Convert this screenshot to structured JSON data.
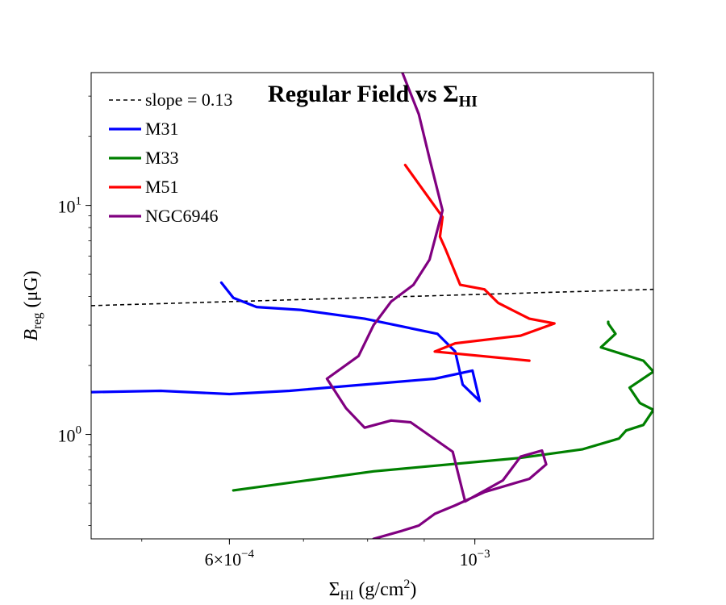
{
  "chart_data": {
    "type": "line",
    "title": "Regular Field vs Σ",
    "title_sub": "HI",
    "xlabel": "Σ",
    "xlabel_sub": "HI",
    "xlabel_unit": " (g/cm",
    "xlabel_sup": "2",
    "xlabel_close": ")",
    "ylabel": "B",
    "ylabel_sub": "reg",
    "ylabel_unit": " (μG)",
    "xscale": "log",
    "yscale": "log",
    "xlim": [
      0.00045,
      0.00145
    ],
    "ylim": [
      0.35,
      38
    ],
    "grid": false,
    "legend_position": "top-left",
    "x_ticks": [
      {
        "value": 0.0006,
        "mantissa": "6",
        "times": "×",
        "base": "10",
        "exp": "−4"
      },
      {
        "value": 0.001,
        "mantissa": "",
        "times": "",
        "base": "10",
        "exp": "−3"
      }
    ],
    "y_ticks": [
      {
        "value": 1,
        "base": "10",
        "exp": "0"
      },
      {
        "value": 10,
        "base": "10",
        "exp": "1"
      }
    ],
    "series": [
      {
        "name": "slope = 0.13",
        "color": "#000000",
        "dashed": true,
        "x": [
          0.00045,
          0.00145
        ],
        "y": [
          3.65,
          4.3
        ]
      },
      {
        "name": "M31",
        "color": "#0000ff",
        "dashed": false,
        "x": [
          0.00059,
          0.000605,
          0.000635,
          0.000695,
          0.000795,
          0.000925,
          0.00096,
          0.000975,
          0.00101,
          0.000995,
          0.00092,
          0.00068,
          0.0006,
          0.00052,
          0.00045
        ],
        "y": [
          4.6,
          3.95,
          3.6,
          3.5,
          3.2,
          2.75,
          2.3,
          1.65,
          1.4,
          1.9,
          1.75,
          1.55,
          1.5,
          1.55,
          1.53
        ]
      },
      {
        "name": "M33",
        "color": "#008000",
        "dashed": false,
        "x": [
          0.000605,
          0.00081,
          0.0011,
          0.00125,
          0.00135,
          0.00137,
          0.00142,
          0.00145,
          0.00141,
          0.00138,
          0.00145,
          0.00142,
          0.0013,
          0.00134,
          0.00132,
          0.00132
        ],
        "y": [
          0.57,
          0.69,
          0.79,
          0.86,
          0.96,
          1.04,
          1.1,
          1.28,
          1.37,
          1.6,
          1.88,
          2.1,
          2.4,
          2.75,
          3.05,
          3.1
        ]
      },
      {
        "name": "M51",
        "color": "#ff0000",
        "dashed": false,
        "x": [
          0.000865,
          0.000935,
          0.00093,
          0.00094,
          0.00097,
          0.00102,
          0.00105,
          0.00112,
          0.00118,
          0.0011,
          0.00096,
          0.00092,
          0.00112
        ],
        "y": [
          15,
          8.9,
          7.3,
          6.5,
          4.5,
          4.3,
          3.75,
          3.2,
          3.05,
          2.7,
          2.5,
          2.3,
          2.1
        ]
      },
      {
        "name": "NGC6946",
        "color": "#800080",
        "dashed": false,
        "x": [
          0.00086,
          0.00089,
          0.00091,
          0.000935,
          0.00091,
          0.00088,
          0.00084,
          0.00081,
          0.000785,
          0.000735,
          0.000765,
          0.000795,
          0.00084,
          0.000875,
          0.000955,
          0.00098,
          0.00106,
          0.0011,
          0.00115,
          0.00116,
          0.00112,
          0.00102,
          0.00096,
          0.00094,
          0.00092,
          0.00089,
          0.00086,
          0.00081
        ],
        "y": [
          38,
          25,
          16,
          9.5,
          5.8,
          4.5,
          3.8,
          3.0,
          2.2,
          1.75,
          1.3,
          1.07,
          1.15,
          1.13,
          0.84,
          0.51,
          0.63,
          0.8,
          0.85,
          0.74,
          0.64,
          0.56,
          0.49,
          0.47,
          0.45,
          0.4,
          0.38,
          0.35
        ]
      }
    ]
  }
}
